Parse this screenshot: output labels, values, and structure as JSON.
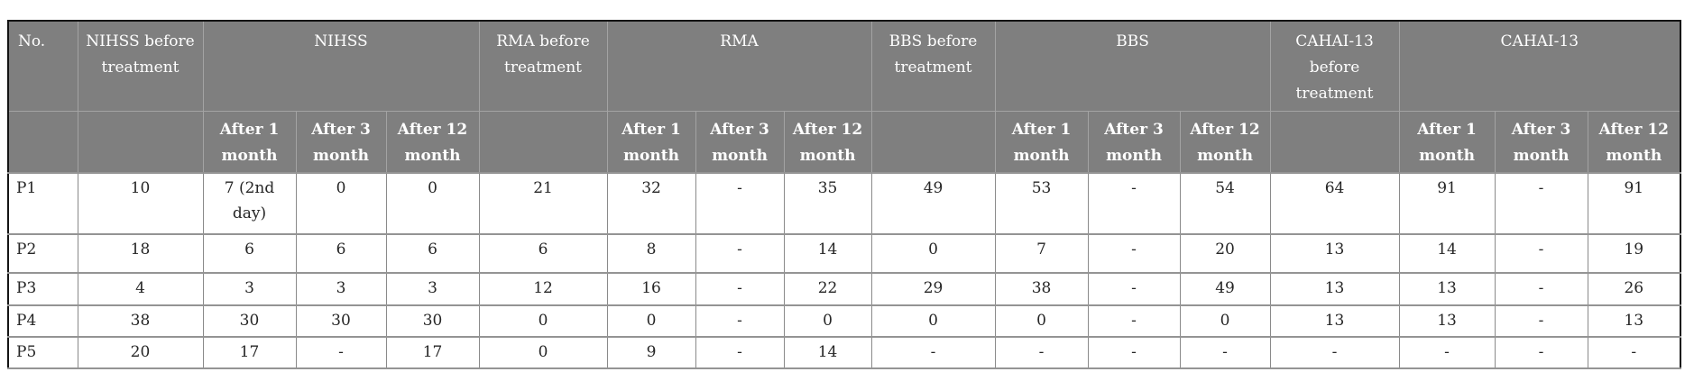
{
  "colors": {
    "header_background": "#7f7f7f",
    "header_text": "#ffffff",
    "body_text": "#262626",
    "outer_border": "#141414",
    "grid_border": "#8a8a8a"
  },
  "table": {
    "header": {
      "no_label": "No.",
      "after_labels": [
        "After 1 month",
        "After 3 month",
        "After 12 month"
      ],
      "groups": [
        {
          "before": "NIHSS before treatment",
          "name": "NIHSS"
        },
        {
          "before": "RMA before treatment",
          "name": "RMA"
        },
        {
          "before": "BBS before treatment",
          "name": "BBS"
        },
        {
          "before": "CAHAI-13 before treatment",
          "name": "CAHAI-13"
        }
      ]
    },
    "rows": [
      {
        "no": "P1",
        "values": [
          "10",
          "7 (2nd day)",
          "0",
          "0",
          "21",
          "32",
          "-",
          "35",
          "49",
          "53",
          "-",
          "54",
          "64",
          "91",
          "-",
          "91"
        ]
      },
      {
        "no": "P2",
        "values": [
          "18",
          "6",
          "6",
          "6",
          "6",
          "8",
          "-",
          "14",
          "0",
          "7",
          "-",
          "20",
          "13",
          "14",
          "-",
          "19"
        ]
      },
      {
        "no": "P3",
        "values": [
          "4",
          "3",
          "3",
          "3",
          "12",
          "16",
          "-",
          "22",
          "29",
          "38",
          "-",
          "49",
          "13",
          "13",
          "-",
          "26"
        ]
      },
      {
        "no": "P4",
        "values": [
          "38",
          "30",
          "30",
          "30",
          "0",
          "0",
          "-",
          "0",
          "0",
          "0",
          "-",
          "0",
          "13",
          "13",
          "-",
          "13"
        ]
      },
      {
        "no": "P5",
        "values": [
          "20",
          "17",
          "-",
          "17",
          "0",
          "9",
          "-",
          "14",
          "-",
          "-",
          "-",
          "-",
          "-",
          "-",
          "-",
          "-"
        ]
      }
    ]
  }
}
